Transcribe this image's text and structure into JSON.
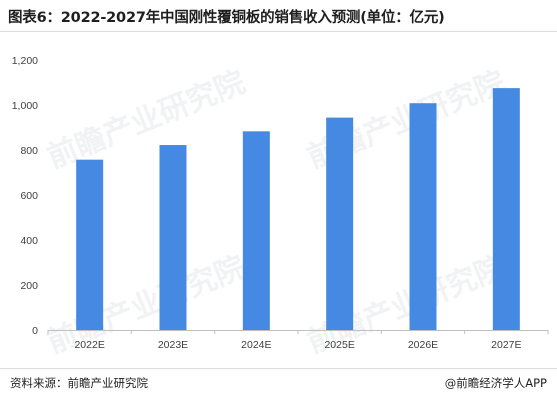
{
  "title": "图表6：2022-2027年中国刚性覆铜板的销售收入预测(单位：亿元)",
  "source": "资料来源：前瞻产业研究院",
  "credit": "@前瞻经济学人APP",
  "watermark": "前瞻产业研究院",
  "colors": {
    "bar": "#4589e2",
    "axis": "#bfbfbf",
    "text": "#404040"
  },
  "chart_data": {
    "type": "bar",
    "categories": [
      "2022E",
      "2023E",
      "2024E",
      "2025E",
      "2026E",
      "2027E"
    ],
    "values": [
      757,
      822,
      883,
      944,
      1008,
      1075
    ],
    "ylim": [
      0,
      1200
    ],
    "yticks": [
      0,
      200,
      400,
      600,
      800,
      1000,
      1200
    ],
    "ytick_labels": [
      "0",
      "200",
      "400",
      "600",
      "800",
      "1,000",
      "1,200"
    ],
    "grid": false,
    "legend": "none"
  }
}
